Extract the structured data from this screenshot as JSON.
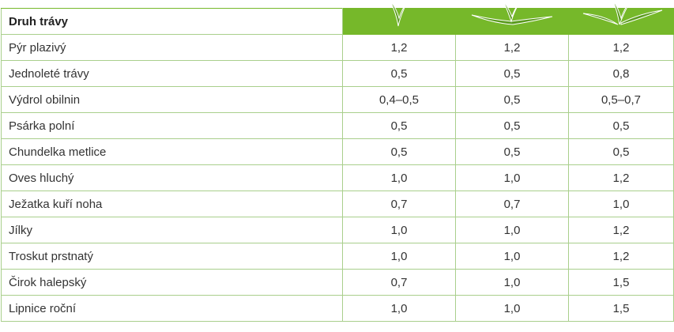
{
  "table": {
    "header": {
      "title": "Druh trávy"
    },
    "rows": [
      [
        "Pýr plazivý",
        "1,2",
        "1,2",
        "1,2"
      ],
      [
        "Jednoleté trávy",
        "0,5",
        "0,5",
        "0,8"
      ],
      [
        "Výdrol obilnin",
        "0,4–0,5",
        "0,5",
        "0,5–0,7"
      ],
      [
        "Psárka polní",
        "0,5",
        "0,5",
        "0,5"
      ],
      [
        "Chundelka metlice",
        "0,5",
        "0,5",
        "0,5"
      ],
      [
        "Oves hluchý",
        "1,0",
        "1,0",
        "1,2"
      ],
      [
        "Ježatka kuří noha",
        "0,7",
        "0,7",
        "1,0"
      ],
      [
        "Jílky",
        "1,0",
        "1,0",
        "1,2"
      ],
      [
        "Troskut prstnatý",
        "1,0",
        "1,0",
        "1,2"
      ],
      [
        "Čirok halepský",
        "0,7",
        "1,0",
        "1,5"
      ],
      [
        "Lipnice roční",
        "1,0",
        "1,0",
        "1,5"
      ]
    ]
  }
}
